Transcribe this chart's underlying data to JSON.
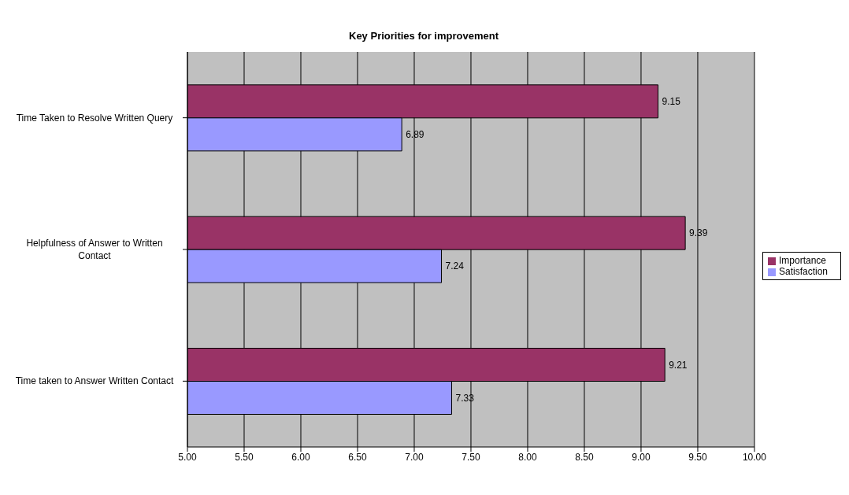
{
  "chart_data": {
    "type": "bar",
    "orientation": "horizontal",
    "title": "Key Priorities for improvement",
    "categories": [
      "Time Taken to Resolve Written Query",
      "Helpfulness of Answer to Written Contact",
      "Time taken to Answer Written Contact"
    ],
    "series": [
      {
        "name": "Importance",
        "color": "#993366",
        "values": [
          9.15,
          9.39,
          9.21
        ]
      },
      {
        "name": "Satisfaction",
        "color": "#9999ff",
        "values": [
          6.89,
          7.24,
          7.33
        ]
      }
    ],
    "xlim": [
      5,
      10
    ],
    "xticks": [
      {
        "value": 5,
        "label": "5.00"
      },
      {
        "value": 5.5,
        "label": "5.50"
      },
      {
        "value": 6,
        "label": "6.00"
      },
      {
        "value": 6.5,
        "label": "6.50"
      },
      {
        "value": 7,
        "label": "7.00"
      },
      {
        "value": 7.5,
        "label": "7.50"
      },
      {
        "value": 8,
        "label": "8.00"
      },
      {
        "value": 8.5,
        "label": "8.50"
      },
      {
        "value": 9,
        "label": "9.00"
      },
      {
        "value": 9.5,
        "label": "9.50"
      },
      {
        "value": 10,
        "label": "10.00"
      }
    ],
    "grid": "x",
    "legend": "right",
    "data_labels": true
  }
}
